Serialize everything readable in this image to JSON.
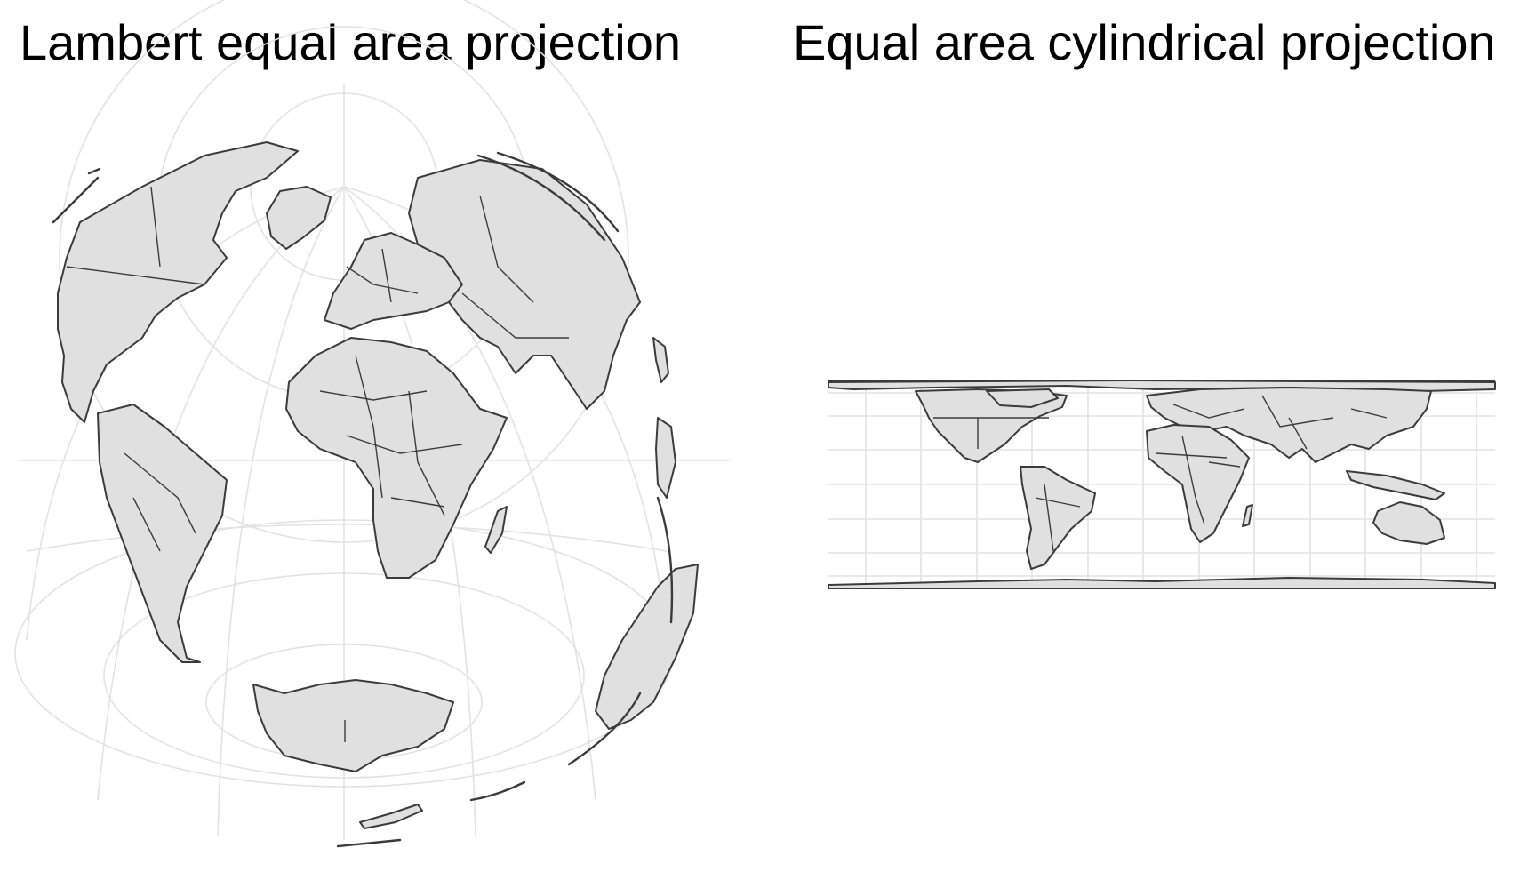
{
  "panels": [
    {
      "title": "Lambert equal area projection",
      "projection": "lambert-azimuthal-equal-area",
      "center": [
        20,
        0
      ]
    },
    {
      "title": "Equal area cylindrical projection",
      "projection": "cylindrical-equal-area"
    }
  ],
  "colors": {
    "background": "#ffffff",
    "land_fill": "#e0e0e0",
    "country_border": "#3b3b3b",
    "graticule": "#e2e2e2",
    "title_text": "#000000"
  },
  "graticule": {
    "lon_step_deg": 30,
    "lat_step_deg": 30
  }
}
